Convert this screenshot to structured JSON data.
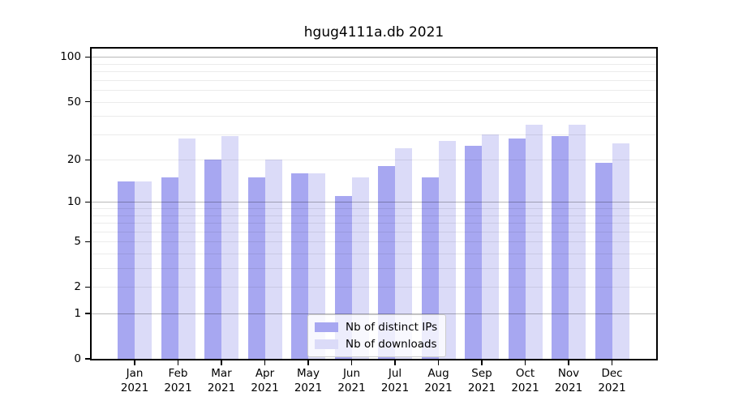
{
  "title": "hgug4111a.db 2021",
  "chart_data": {
    "type": "bar",
    "title": "hgug4111a.db 2021",
    "categories": [
      "Jan",
      "Feb",
      "Mar",
      "Apr",
      "May",
      "Jun",
      "Jul",
      "Aug",
      "Sep",
      "Oct",
      "Nov",
      "Dec"
    ],
    "x_tick_sublabel": "2021",
    "series": [
      {
        "name": "Nb of distinct IPs",
        "color": "#a7a7f1",
        "values": [
          14,
          15,
          20,
          15,
          16,
          11,
          18,
          15,
          25,
          28,
          29,
          19
        ]
      },
      {
        "name": "Nb of downloads",
        "color": "#dbdbf8",
        "values": [
          14,
          28,
          29,
          20,
          16,
          15,
          24,
          27,
          30,
          35,
          35,
          26
        ]
      }
    ],
    "xlabel": "",
    "ylabel": "",
    "yscale": "log1p",
    "ylim": [
      0,
      114
    ],
    "y_ticks_labeled": [
      0,
      1,
      2,
      5,
      10,
      20,
      50,
      100
    ],
    "y_gridlines_major": [
      1,
      10,
      100
    ],
    "y_gridlines_minor": [
      2,
      3,
      4,
      5,
      6,
      7,
      8,
      9,
      20,
      30,
      40,
      50,
      60,
      70,
      80,
      90
    ],
    "grid": true,
    "legend_position": "lower center"
  }
}
